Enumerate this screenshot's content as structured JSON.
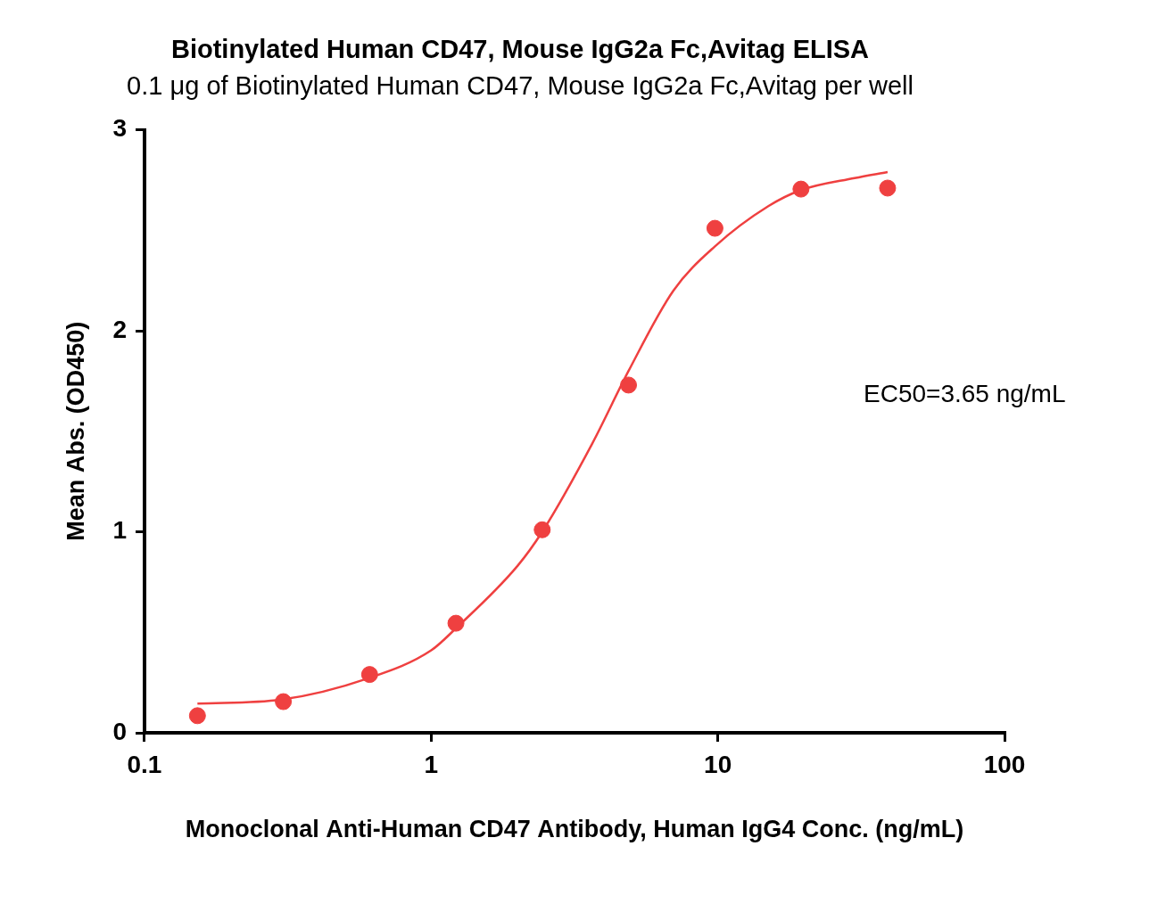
{
  "chart_data": {
    "type": "scatter",
    "title": "Biotinylated Human CD47, Mouse IgG2a Fc,Avitag ELISA",
    "subtitle": "0.1 μg of Biotinylated Human CD47, Mouse IgG2a Fc,Avitag per well",
    "x_label": "Monoclonal Anti-Human CD47 Antibody, Human IgG4 Conc. (ng/mL)",
    "y_label": "Mean Abs. (OD450)",
    "annotations": [
      "EC50=3.65 ng/mL"
    ],
    "log": "x",
    "grid": false,
    "xlim": [
      0.1,
      100
    ],
    "xticks": [
      0.1,
      1,
      10,
      100
    ],
    "ylim": [
      0,
      3
    ],
    "yticks": [
      0,
      1,
      2,
      3
    ],
    "series": [
      {
        "type": "scatter",
        "color": "#ef4040",
        "marker": "circle",
        "x": [
          0.153,
          0.305,
          0.61,
          1.22,
          2.44,
          4.88,
          9.77,
          19.5,
          39.1
        ],
        "values": [
          0.085,
          0.155,
          0.29,
          0.545,
          1.01,
          1.73,
          2.51,
          2.705,
          2.71
        ]
      },
      {
        "type": "line",
        "color": "#ef4040",
        "line_style": "solid",
        "x": [
          0.153,
          0.3,
          0.6,
          1,
          1.22,
          2,
          2.44,
          3.65,
          4.88,
          7,
          9.77,
          15,
          19.5,
          30,
          39.1
        ],
        "values": [
          0.145,
          0.165,
          0.27,
          0.41,
          0.52,
          0.83,
          1.0,
          1.44,
          1.8,
          2.2,
          2.42,
          2.62,
          2.7,
          2.76,
          2.79
        ]
      }
    ]
  }
}
